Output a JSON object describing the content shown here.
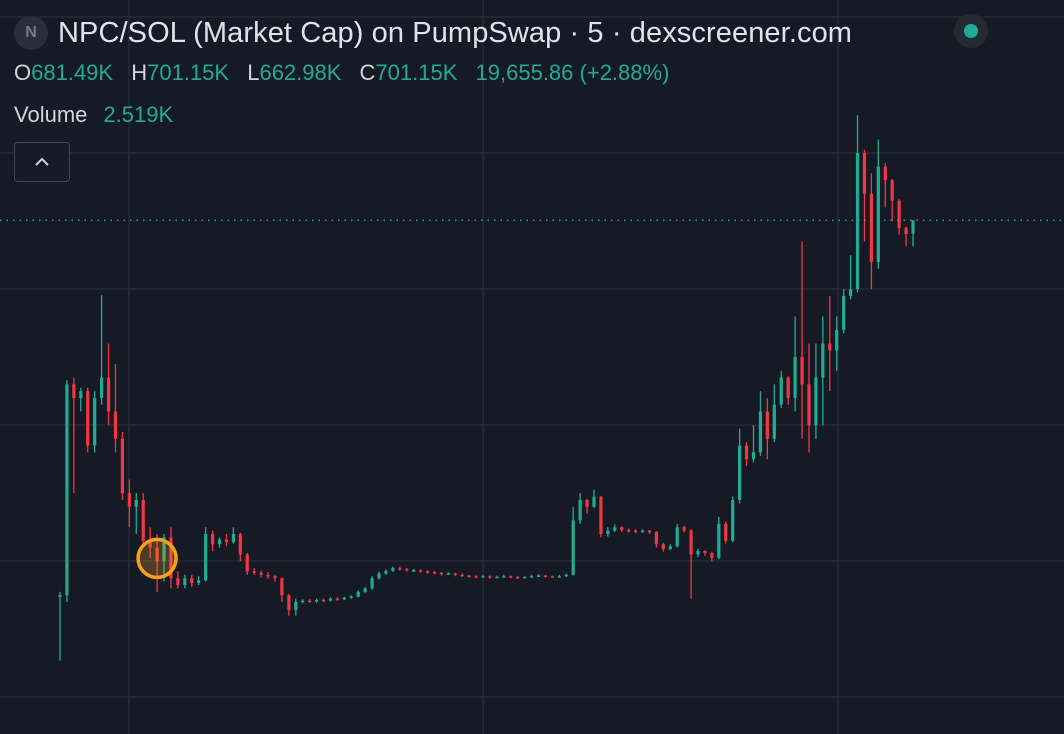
{
  "header": {
    "symbol_icon_letter": "N",
    "title": "NPC/SOL (Market Cap) on PumpSwap · 5 · dexscreener.com",
    "status_color": "#22ab94",
    "ohlc": {
      "open_label": "O",
      "open": "681.49K",
      "high_label": "H",
      "high": "701.15K",
      "low_label": "L",
      "low": "662.98K",
      "close_label": "C",
      "close": "701.15K",
      "change": "19,655.86 (+2.88%)"
    },
    "volume_label": "Volume",
    "volume": "2.519K",
    "collapse_icon": "chevron-up-icon"
  },
  "colors": {
    "background": "#161a25",
    "grid": "#262a35",
    "up": "#22ab94",
    "down": "#f23645",
    "text": "#d1d4dc",
    "marker": "#f7a21b"
  },
  "chart_data": {
    "type": "candlestick",
    "unit": "K",
    "ylim": [
      -54,
      1025
    ],
    "grid": true,
    "last_price": 701.15,
    "last_price_line": "dotted",
    "marker_candle_index": 14,
    "candles": [
      [
        150,
        155,
        54,
        150
      ],
      [
        150,
        466,
        140,
        460
      ],
      [
        460,
        470,
        300,
        440
      ],
      [
        440,
        455,
        420,
        450
      ],
      [
        450,
        455,
        360,
        370
      ],
      [
        370,
        450,
        360,
        440
      ],
      [
        440,
        591,
        430,
        470
      ],
      [
        470,
        520,
        400,
        420
      ],
      [
        420,
        490,
        360,
        380
      ],
      [
        380,
        390,
        290,
        300
      ],
      [
        300,
        320,
        250,
        280
      ],
      [
        280,
        300,
        240,
        290
      ],
      [
        290,
        300,
        220,
        230
      ],
      [
        230,
        250,
        205,
        220
      ],
      [
        220,
        240,
        155,
        200
      ],
      [
        200,
        240,
        170,
        235
      ],
      [
        235,
        250,
        160,
        175
      ],
      [
        175,
        185,
        160,
        165
      ],
      [
        165,
        180,
        160,
        175
      ],
      [
        175,
        180,
        162,
        168
      ],
      [
        168,
        178,
        165,
        172
      ],
      [
        172,
        250,
        170,
        240
      ],
      [
        240,
        245,
        215,
        225
      ],
      [
        225,
        235,
        220,
        232
      ],
      [
        232,
        240,
        222,
        228
      ],
      [
        228,
        250,
        226,
        240
      ],
      [
        240,
        242,
        200,
        210
      ],
      [
        210,
        212,
        180,
        185
      ],
      [
        185,
        190,
        180,
        183
      ],
      [
        183,
        186,
        176,
        180
      ],
      [
        180,
        184,
        174,
        178
      ],
      [
        178,
        180,
        170,
        175
      ],
      [
        175,
        176,
        140,
        150
      ],
      [
        150,
        152,
        120,
        128
      ],
      [
        128,
        145,
        120,
        140
      ],
      [
        140,
        144,
        138,
        142
      ],
      [
        142,
        144,
        139,
        141
      ],
      [
        141,
        145,
        139,
        143
      ],
      [
        143,
        145,
        140,
        142
      ],
      [
        142,
        147,
        141,
        145
      ],
      [
        145,
        147,
        142,
        144
      ],
      [
        144,
        148,
        143,
        146
      ],
      [
        146,
        150,
        145,
        148
      ],
      [
        148,
        157,
        147,
        155
      ],
      [
        155,
        162,
        153,
        160
      ],
      [
        160,
        178,
        158,
        175
      ],
      [
        175,
        185,
        173,
        182
      ],
      [
        182,
        188,
        180,
        186
      ],
      [
        186,
        192,
        184,
        190
      ],
      [
        190,
        192,
        186,
        188
      ],
      [
        188,
        190,
        185,
        186
      ],
      [
        186,
        189,
        184,
        187
      ],
      [
        187,
        188,
        183,
        185
      ],
      [
        185,
        187,
        182,
        184
      ],
      [
        184,
        186,
        181,
        183
      ],
      [
        183,
        184,
        179,
        181
      ],
      [
        181,
        184,
        180,
        182
      ],
      [
        182,
        183,
        178,
        180
      ],
      [
        180,
        182,
        177,
        179
      ],
      [
        179,
        180,
        176,
        178
      ],
      [
        178,
        179,
        175,
        177
      ],
      [
        177,
        180,
        176,
        178
      ],
      [
        178,
        179,
        174,
        176
      ],
      [
        176,
        179,
        175,
        177
      ],
      [
        177,
        180,
        176,
        178
      ],
      [
        178,
        179,
        175,
        177
      ],
      [
        177,
        178,
        174,
        176
      ],
      [
        176,
        178,
        175,
        177
      ],
      [
        177,
        180,
        176,
        178
      ],
      [
        178,
        181,
        177,
        179
      ],
      [
        179,
        180,
        176,
        178
      ],
      [
        178,
        179,
        176,
        177
      ],
      [
        177,
        180,
        176,
        178
      ],
      [
        178,
        182,
        177,
        180
      ],
      [
        180,
        280,
        179,
        260
      ],
      [
        260,
        300,
        255,
        290
      ],
      [
        290,
        292,
        270,
        280
      ],
      [
        280,
        305,
        278,
        295
      ],
      [
        295,
        296,
        235,
        240
      ],
      [
        240,
        250,
        236,
        245
      ],
      [
        245,
        254,
        243,
        250
      ],
      [
        250,
        251,
        243,
        246
      ],
      [
        246,
        248,
        242,
        245
      ],
      [
        245,
        247,
        241,
        244
      ],
      [
        244,
        247,
        242,
        245
      ],
      [
        245,
        246,
        240,
        243
      ],
      [
        243,
        244,
        220,
        225
      ],
      [
        225,
        227,
        214,
        218
      ],
      [
        218,
        225,
        216,
        222
      ],
      [
        222,
        255,
        220,
        250
      ],
      [
        250,
        252,
        242,
        245
      ],
      [
        245,
        247,
        145,
        210
      ],
      [
        210,
        218,
        206,
        215
      ],
      [
        215,
        216,
        208,
        212
      ],
      [
        212,
        214,
        200,
        205
      ],
      [
        205,
        265,
        203,
        255
      ],
      [
        255,
        258,
        226,
        230
      ],
      [
        230,
        295,
        228,
        290
      ],
      [
        290,
        395,
        285,
        370
      ],
      [
        370,
        375,
        340,
        350
      ],
      [
        350,
        400,
        345,
        360
      ],
      [
        360,
        450,
        355,
        420
      ],
      [
        420,
        440,
        350,
        380
      ],
      [
        380,
        460,
        375,
        430
      ],
      [
        430,
        480,
        425,
        470
      ],
      [
        470,
        472,
        430,
        440
      ],
      [
        440,
        560,
        420,
        500
      ],
      [
        500,
        670,
        380,
        460
      ],
      [
        460,
        520,
        360,
        400
      ],
      [
        400,
        520,
        380,
        470
      ],
      [
        470,
        560,
        400,
        520
      ],
      [
        520,
        590,
        450,
        510
      ],
      [
        510,
        560,
        480,
        540
      ],
      [
        540,
        600,
        535,
        590
      ],
      [
        590,
        650,
        585,
        600
      ],
      [
        600,
        856,
        595,
        800
      ],
      [
        800,
        805,
        670,
        740
      ],
      [
        740,
        770,
        600,
        640
      ],
      [
        640,
        820,
        630,
        780
      ],
      [
        780,
        785,
        720,
        760
      ],
      [
        760,
        762,
        700,
        730
      ],
      [
        730,
        732,
        680,
        690
      ],
      [
        690,
        692,
        663,
        681
      ],
      [
        681.49,
        701.15,
        662.98,
        701.15
      ]
    ]
  }
}
